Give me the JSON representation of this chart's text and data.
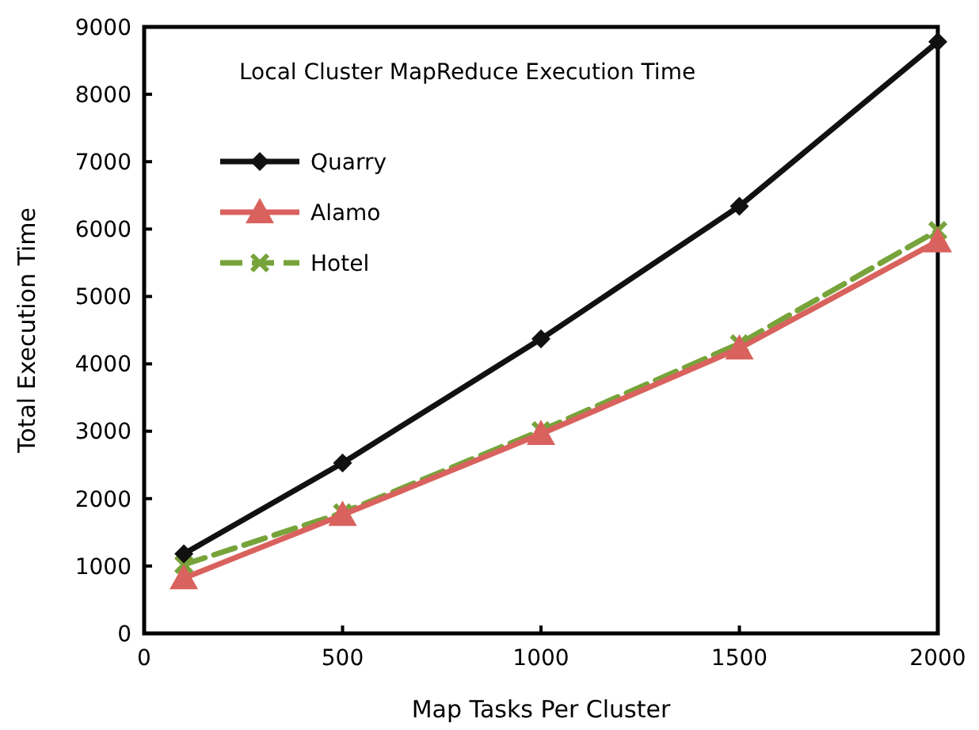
{
  "chart_data": {
    "type": "line",
    "title": "Local Cluster MapReduce Execution Time",
    "xlabel": "Map Tasks Per Cluster",
    "ylabel": "Total Execution Time",
    "x": [
      100,
      500,
      1000,
      1500,
      2000
    ],
    "series": [
      {
        "name": "Quarry",
        "color": "#111111",
        "marker": "diamond",
        "line_style": "solid",
        "values": [
          1180,
          2530,
          4370,
          6340,
          8780
        ]
      },
      {
        "name": "Alamo",
        "color": "#d9625e",
        "marker": "triangle",
        "line_style": "solid",
        "values": [
          820,
          1760,
          2960,
          4230,
          5820
        ]
      },
      {
        "name": "Hotel",
        "color": "#77a33a",
        "marker": "cross",
        "line_style": "dashed",
        "values": [
          1020,
          1790,
          3010,
          4300,
          5980
        ]
      }
    ],
    "xlim": [
      0,
      2000
    ],
    "xticks": [
      0,
      500,
      1000,
      1500,
      2000
    ],
    "ylim": [
      0,
      9000
    ],
    "yticks": [
      0,
      1000,
      2000,
      3000,
      4000,
      5000,
      6000,
      7000,
      8000,
      9000
    ],
    "grid": false,
    "legend": "top left"
  }
}
